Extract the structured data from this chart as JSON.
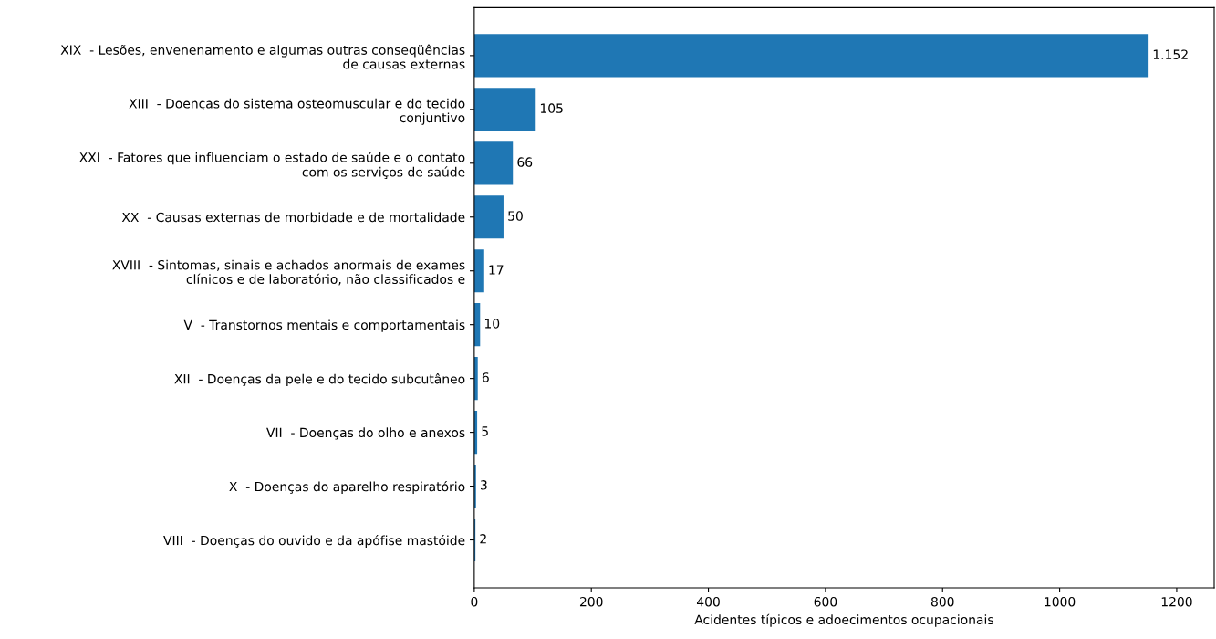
{
  "chart_data": {
    "type": "bar",
    "orientation": "horizontal",
    "xlabel": "Acidentes típicos e adoecimentos ocupacionais",
    "categories": [
      "XIX  - Lesões, envenenamento e algumas outras conseqüências\nde causas externas",
      "XIII  - Doenças do sistema osteomuscular e do tecido\nconjuntivo",
      "XXI  - Fatores que influenciam o estado de saúde e o contato\ncom os serviços de saúde",
      "XX  - Causas externas de morbidade e de mortalidade",
      "XVIII  - Sintomas, sinais e achados anormais de exames\nclínicos e de laboratório, não classificados e",
      "V  - Transtornos mentais e comportamentais",
      "XII  - Doenças da pele e do tecido subcutâneo",
      "VII  - Doenças do olho e anexos",
      "X  - Doenças do aparelho respiratório",
      "VIII  - Doenças do ouvido e da apófise mastóide"
    ],
    "values": [
      1152,
      105,
      66,
      50,
      17,
      10,
      6,
      5,
      3,
      2
    ],
    "value_labels": [
      "1.152",
      "105",
      "66",
      "50",
      "17",
      "10",
      "6",
      "5",
      "3",
      "2"
    ],
    "color": "#1f77b4",
    "xlim": [
      0,
      1264
    ],
    "xticks": [
      0,
      200,
      400,
      600,
      800,
      1000,
      1200
    ],
    "grid": false,
    "legend": false
  }
}
